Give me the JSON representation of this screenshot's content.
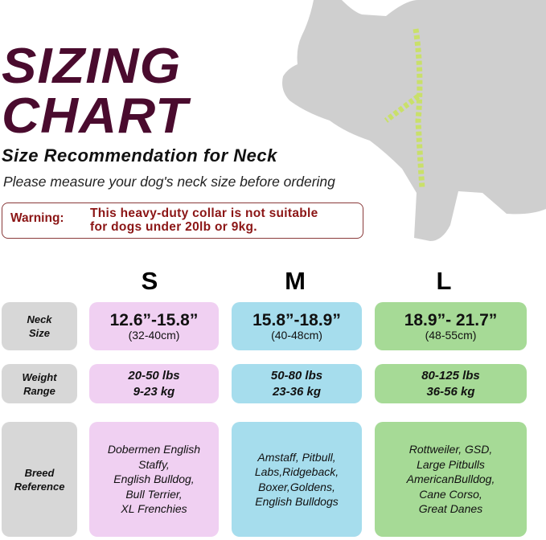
{
  "title": {
    "line1": "SIZING",
    "line2": "CHART"
  },
  "subtitle": "Size Recommendation for Neck",
  "instruction": "Please measure your dog's neck size before ordering",
  "warning": {
    "label": "Warning:",
    "line1": "This heavy-duty collar is not suitable",
    "line2": "for dogs under 20lb or 9kg."
  },
  "colors": {
    "title": "#4a0b2e",
    "warning": "#8b1515",
    "small": "#f0d0f2",
    "medium": "#a6dded",
    "large": "#a6da96",
    "label": "#d7d7d7"
  },
  "rows": {
    "neck": {
      "label1": "Neck",
      "label2": "Size"
    },
    "weight": {
      "label1": "Weight",
      "label2": "Range"
    },
    "breed": {
      "label1": "Breed",
      "label2": "Reference"
    }
  },
  "sizes": [
    {
      "name": "S",
      "neck_in": "12.6”-15.8”",
      "neck_cm": "(32-40cm)",
      "weight_lbs": "20-50 lbs",
      "weight_kg": "9-23 kg",
      "breeds": "Dobermen English\nStaffy,\nEnglish Bulldog,\nBull Terrier,\nXL Frenchies"
    },
    {
      "name": "M",
      "neck_in": "15.8”-18.9”",
      "neck_cm": "(40-48cm)",
      "weight_lbs": "50-80 lbs",
      "weight_kg": "23-36 kg",
      "breeds": "Amstaff, Pitbull,\nLabs,Ridgeback,\nBoxer,Goldens,\nEnglish Bulldogs"
    },
    {
      "name": "L",
      "neck_in": "18.9”- 21.7”",
      "neck_cm": "(48-55cm)",
      "weight_lbs": "80-125 lbs",
      "weight_kg": "36-56 kg",
      "breeds": "Rottweiler, GSD,\nLarge Pitbulls\nAmericanBulldog,\nCane Corso,\nGreat Danes"
    }
  ]
}
